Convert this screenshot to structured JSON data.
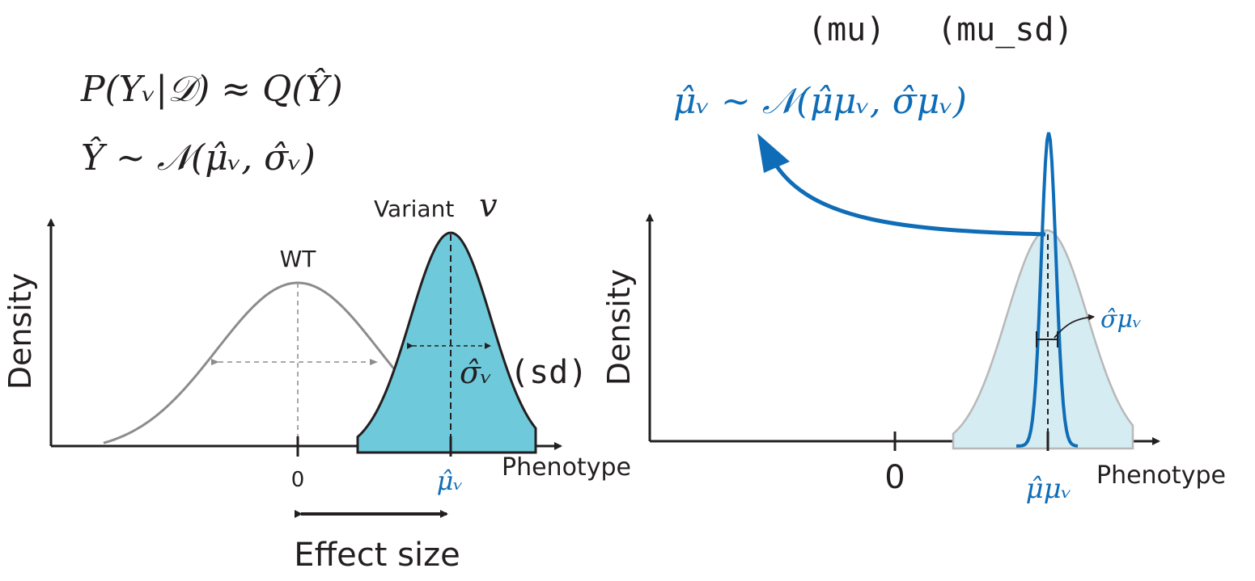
{
  "left_panel": {
    "formula_line1": "P(Yᵥ|𝒟) ≈ Q(Ŷ)",
    "formula_line2": "Ŷ ~ 𝒩(μ̂ᵥ, σ̂ᵥ)",
    "y_axis_label": "Density",
    "x_axis_label": "Phenotype",
    "wt_label": "WT",
    "variant_label": "Variant",
    "variant_symbol": "𝑣",
    "sigma_label": "σ̂ᵥ",
    "sigma_code": "(sd)",
    "zero_tick": "0",
    "mu_tick": "μ̂ᵥ",
    "effect_size_label": "Effect size"
  },
  "right_panel": {
    "code_mu": "(mu)",
    "code_mu_sd": "(mu_sd)",
    "formula": "μ̂ᵥ ~ 𝒩(μ̂μᵥ, σ̂μᵥ)",
    "y_axis_label": "Density",
    "x_axis_label": "Phenotype",
    "zero_tick": "0",
    "mu_mu_tick": "μ̂μᵥ",
    "sigma_mu_label": "σ̂μᵥ"
  },
  "colors": {
    "axis": "#231f20",
    "wt_curve": "#8c8c8c",
    "variant_fill": "#6ecadb",
    "variant_stroke": "#231f20",
    "blue": "#0f6db7",
    "light_fill": "#d4ecf2",
    "light_stroke": "#b8b8b8"
  }
}
